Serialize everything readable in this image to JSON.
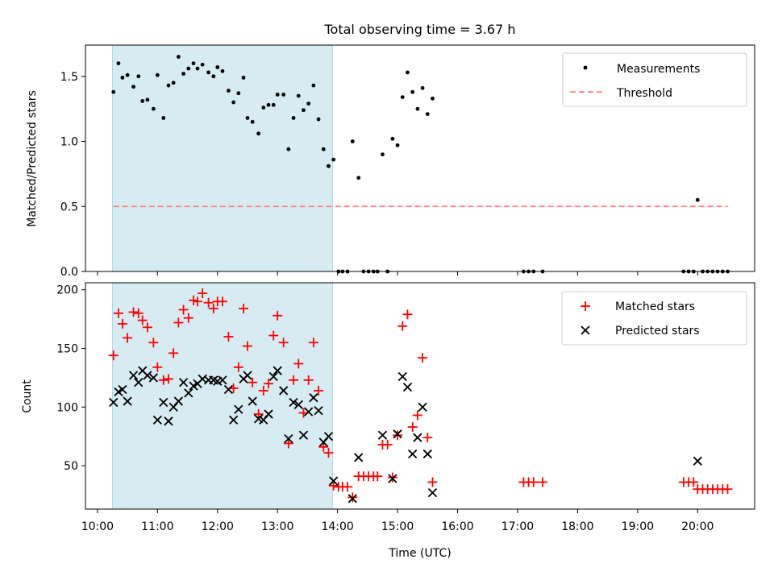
{
  "figure": {
    "title": "Total observing time = 3.67 h",
    "xlabel": "Time (UTC)",
    "x_ticks": [
      "10:00",
      "11:00",
      "12:00",
      "13:00",
      "14:00",
      "15:00",
      "16:00",
      "17:00",
      "18:00",
      "19:00",
      "20:00"
    ],
    "shaded_region": {
      "x_start": "10:15",
      "x_end": "13:55",
      "color": "#add8e6"
    }
  },
  "chart_data": [
    {
      "type": "scatter",
      "ylabel": "Matched/Predicted stars",
      "xlim": [
        "09:48",
        "20:57"
      ],
      "ylim": [
        0,
        1.74
      ],
      "y_ticks": [
        "0.0",
        "0.5",
        "1.0",
        "1.5"
      ],
      "legend_position": "top-right",
      "series": [
        {
          "name": "Measurements",
          "marker": "dot",
          "color": "#000000",
          "points": [
            [
              "10:16",
              1.38
            ],
            [
              "10:21",
              1.6
            ],
            [
              "10:25",
              1.49
            ],
            [
              "10:30",
              1.51
            ],
            [
              "10:36",
              1.42
            ],
            [
              "10:41",
              1.5
            ],
            [
              "10:45",
              1.31
            ],
            [
              "10:50",
              1.32
            ],
            [
              "10:56",
              1.25
            ],
            [
              "11:00",
              1.51
            ],
            [
              "11:06",
              1.18
            ],
            [
              "11:11",
              1.43
            ],
            [
              "11:16",
              1.45
            ],
            [
              "11:21",
              1.65
            ],
            [
              "11:26",
              1.52
            ],
            [
              "11:31",
              1.56
            ],
            [
              "11:36",
              1.6
            ],
            [
              "11:40",
              1.56
            ],
            [
              "11:45",
              1.59
            ],
            [
              "11:51",
              1.53
            ],
            [
              "11:56",
              1.5
            ],
            [
              "12:00",
              1.57
            ],
            [
              "12:05",
              1.54
            ],
            [
              "12:11",
              1.39
            ],
            [
              "12:16",
              1.3
            ],
            [
              "12:21",
              1.37
            ],
            [
              "12:26",
              1.49
            ],
            [
              "12:30",
              1.18
            ],
            [
              "12:35",
              1.15
            ],
            [
              "12:41",
              1.06
            ],
            [
              "12:46",
              1.26
            ],
            [
              "12:51",
              1.28
            ],
            [
              "12:56",
              1.28
            ],
            [
              "13:00",
              1.36
            ],
            [
              "13:06",
              1.36
            ],
            [
              "13:11",
              0.94
            ],
            [
              "13:16",
              1.18
            ],
            [
              "13:21",
              1.35
            ],
            [
              "13:26",
              1.24
            ],
            [
              "13:31",
              1.29
            ],
            [
              "13:36",
              1.43
            ],
            [
              "13:41",
              1.17
            ],
            [
              "13:46",
              0.94
            ],
            [
              "13:51",
              0.81
            ],
            [
              "13:56",
              0.86
            ],
            [
              "14:01",
              0.0
            ],
            [
              "14:05",
              0.0
            ],
            [
              "14:10",
              0.0
            ],
            [
              "14:15",
              1.0
            ],
            [
              "14:21",
              0.72
            ],
            [
              "14:26",
              0.0
            ],
            [
              "14:31",
              0.0
            ],
            [
              "14:36",
              0.0
            ],
            [
              "14:40",
              0.0
            ],
            [
              "14:45",
              0.9
            ],
            [
              "14:50",
              0.0
            ],
            [
              "14:55",
              1.02
            ],
            [
              "15:00",
              0.97
            ],
            [
              "15:05",
              1.34
            ],
            [
              "15:10",
              1.53
            ],
            [
              "15:15",
              1.38
            ],
            [
              "15:20",
              1.25
            ],
            [
              "15:25",
              1.41
            ],
            [
              "15:30",
              1.21
            ],
            [
              "15:35",
              1.33
            ],
            [
              "17:06",
              0.0
            ],
            [
              "17:11",
              0.0
            ],
            [
              "17:16",
              0.0
            ],
            [
              "17:25",
              0.0
            ],
            [
              "19:46",
              0.0
            ],
            [
              "19:51",
              0.0
            ],
            [
              "19:56",
              0.0
            ],
            [
              "20:00",
              0.55
            ],
            [
              "20:05",
              0.0
            ],
            [
              "20:10",
              0.0
            ],
            [
              "20:15",
              0.0
            ],
            [
              "20:20",
              0.0
            ],
            [
              "20:25",
              0.0
            ],
            [
              "20:30",
              0.0
            ]
          ]
        },
        {
          "name": "Threshold",
          "type": "line",
          "style": "dashed",
          "color": "#ff7f7f",
          "points": [
            [
              "10:16",
              0.5
            ],
            [
              "20:30",
              0.5
            ]
          ]
        }
      ]
    },
    {
      "type": "scatter",
      "ylabel": "Count",
      "xlim": [
        "09:48",
        "20:57"
      ],
      "ylim": [
        13,
        206
      ],
      "y_ticks": [
        "50",
        "100",
        "150",
        "200"
      ],
      "legend_position": "top-right",
      "series": [
        {
          "name": "Matched stars",
          "marker": "plus",
          "color": "#ff0000",
          "points": [
            [
              "10:16",
              144
            ],
            [
              "10:21",
              180
            ],
            [
              "10:25",
              171
            ],
            [
              "10:30",
              159
            ],
            [
              "10:36",
              181
            ],
            [
              "10:41",
              180
            ],
            [
              "10:45",
              174
            ],
            [
              "10:50",
              168
            ],
            [
              "10:56",
              155
            ],
            [
              "11:00",
              134
            ],
            [
              "11:06",
              123
            ],
            [
              "11:11",
              124
            ],
            [
              "11:16",
              146
            ],
            [
              "11:21",
              172
            ],
            [
              "11:26",
              183
            ],
            [
              "11:31",
              176
            ],
            [
              "11:36",
              191
            ],
            [
              "11:40",
              190
            ],
            [
              "11:45",
              197
            ],
            [
              "11:51",
              189
            ],
            [
              "11:56",
              184
            ],
            [
              "12:00",
              190
            ],
            [
              "12:05",
              190
            ],
            [
              "12:11",
              160
            ],
            [
              "12:16",
              116
            ],
            [
              "12:21",
              134
            ],
            [
              "12:26",
              184
            ],
            [
              "12:30",
              152
            ],
            [
              "12:35",
              121
            ],
            [
              "12:41",
              94
            ],
            [
              "12:46",
              114
            ],
            [
              "12:51",
              120
            ],
            [
              "12:56",
              161
            ],
            [
              "13:00",
              178
            ],
            [
              "13:06",
              155
            ],
            [
              "13:11",
              69
            ],
            [
              "13:16",
              123
            ],
            [
              "13:21",
              137
            ],
            [
              "13:26",
              95
            ],
            [
              "13:31",
              123
            ],
            [
              "13:36",
              155
            ],
            [
              "13:41",
              114
            ],
            [
              "13:46",
              66
            ],
            [
              "13:51",
              61
            ],
            [
              "13:56",
              33
            ],
            [
              "14:01",
              32
            ],
            [
              "14:05",
              32
            ],
            [
              "14:10",
              32
            ],
            [
              "14:15",
              23
            ],
            [
              "14:21",
              41
            ],
            [
              "14:26",
              41
            ],
            [
              "14:31",
              41
            ],
            [
              "14:36",
              41
            ],
            [
              "14:40",
              41
            ],
            [
              "14:45",
              68
            ],
            [
              "14:50",
              68
            ],
            [
              "14:55",
              40
            ],
            [
              "15:00",
              76
            ],
            [
              "15:05",
              169
            ],
            [
              "15:10",
              179
            ],
            [
              "15:15",
              83
            ],
            [
              "15:20",
              93
            ],
            [
              "15:25",
              142
            ],
            [
              "15:30",
              74
            ],
            [
              "15:35",
              36
            ],
            [
              "17:06",
              36
            ],
            [
              "17:11",
              36
            ],
            [
              "17:16",
              36
            ],
            [
              "17:25",
              36
            ],
            [
              "19:46",
              36
            ],
            [
              "19:51",
              36
            ],
            [
              "19:56",
              36
            ],
            [
              "20:00",
              30
            ],
            [
              "20:05",
              30
            ],
            [
              "20:10",
              30
            ],
            [
              "20:15",
              30
            ],
            [
              "20:20",
              30
            ],
            [
              "20:25",
              30
            ],
            [
              "20:30",
              30
            ]
          ]
        },
        {
          "name": "Predicted stars",
          "marker": "x",
          "color": "#000000",
          "points": [
            [
              "10:16",
              104
            ],
            [
              "10:21",
              113
            ],
            [
              "10:25",
              115
            ],
            [
              "10:30",
              105
            ],
            [
              "10:36",
              127
            ],
            [
              "10:41",
              121
            ],
            [
              "10:45",
              131
            ],
            [
              "10:50",
              127
            ],
            [
              "10:56",
              125
            ],
            [
              "11:00",
              89
            ],
            [
              "11:06",
              104
            ],
            [
              "11:11",
              88
            ],
            [
              "11:16",
              100
            ],
            [
              "11:21",
              105
            ],
            [
              "11:26",
              121
            ],
            [
              "11:31",
              112
            ],
            [
              "11:36",
              118
            ],
            [
              "11:40",
              120
            ],
            [
              "11:45",
              124
            ],
            [
              "11:51",
              123
            ],
            [
              "11:56",
              123
            ],
            [
              "12:00",
              122
            ],
            [
              "12:05",
              123
            ],
            [
              "12:11",
              115
            ],
            [
              "12:16",
              89
            ],
            [
              "12:21",
              98
            ],
            [
              "12:26",
              124
            ],
            [
              "12:30",
              127
            ],
            [
              "12:35",
              105
            ],
            [
              "12:41",
              90
            ],
            [
              "12:46",
              89
            ],
            [
              "12:51",
              94
            ],
            [
              "12:56",
              126
            ],
            [
              "13:00",
              131
            ],
            [
              "13:06",
              114
            ],
            [
              "13:11",
              73
            ],
            [
              "13:16",
              104
            ],
            [
              "13:21",
              102
            ],
            [
              "13:26",
              76
            ],
            [
              "13:31",
              96
            ],
            [
              "13:36",
              108
            ],
            [
              "13:41",
              97
            ],
            [
              "13:46",
              70
            ],
            [
              "13:51",
              75
            ],
            [
              "13:56",
              37
            ],
            [
              "14:15",
              22
            ],
            [
              "14:21",
              57
            ],
            [
              "14:45",
              76
            ],
            [
              "14:55",
              39
            ],
            [
              "15:00",
              77
            ],
            [
              "15:05",
              126
            ],
            [
              "15:10",
              117
            ],
            [
              "15:15",
              60
            ],
            [
              "15:20",
              74
            ],
            [
              "15:25",
              100
            ],
            [
              "15:30",
              60
            ],
            [
              "15:35",
              27
            ],
            [
              "20:00",
              54
            ]
          ]
        }
      ]
    }
  ]
}
